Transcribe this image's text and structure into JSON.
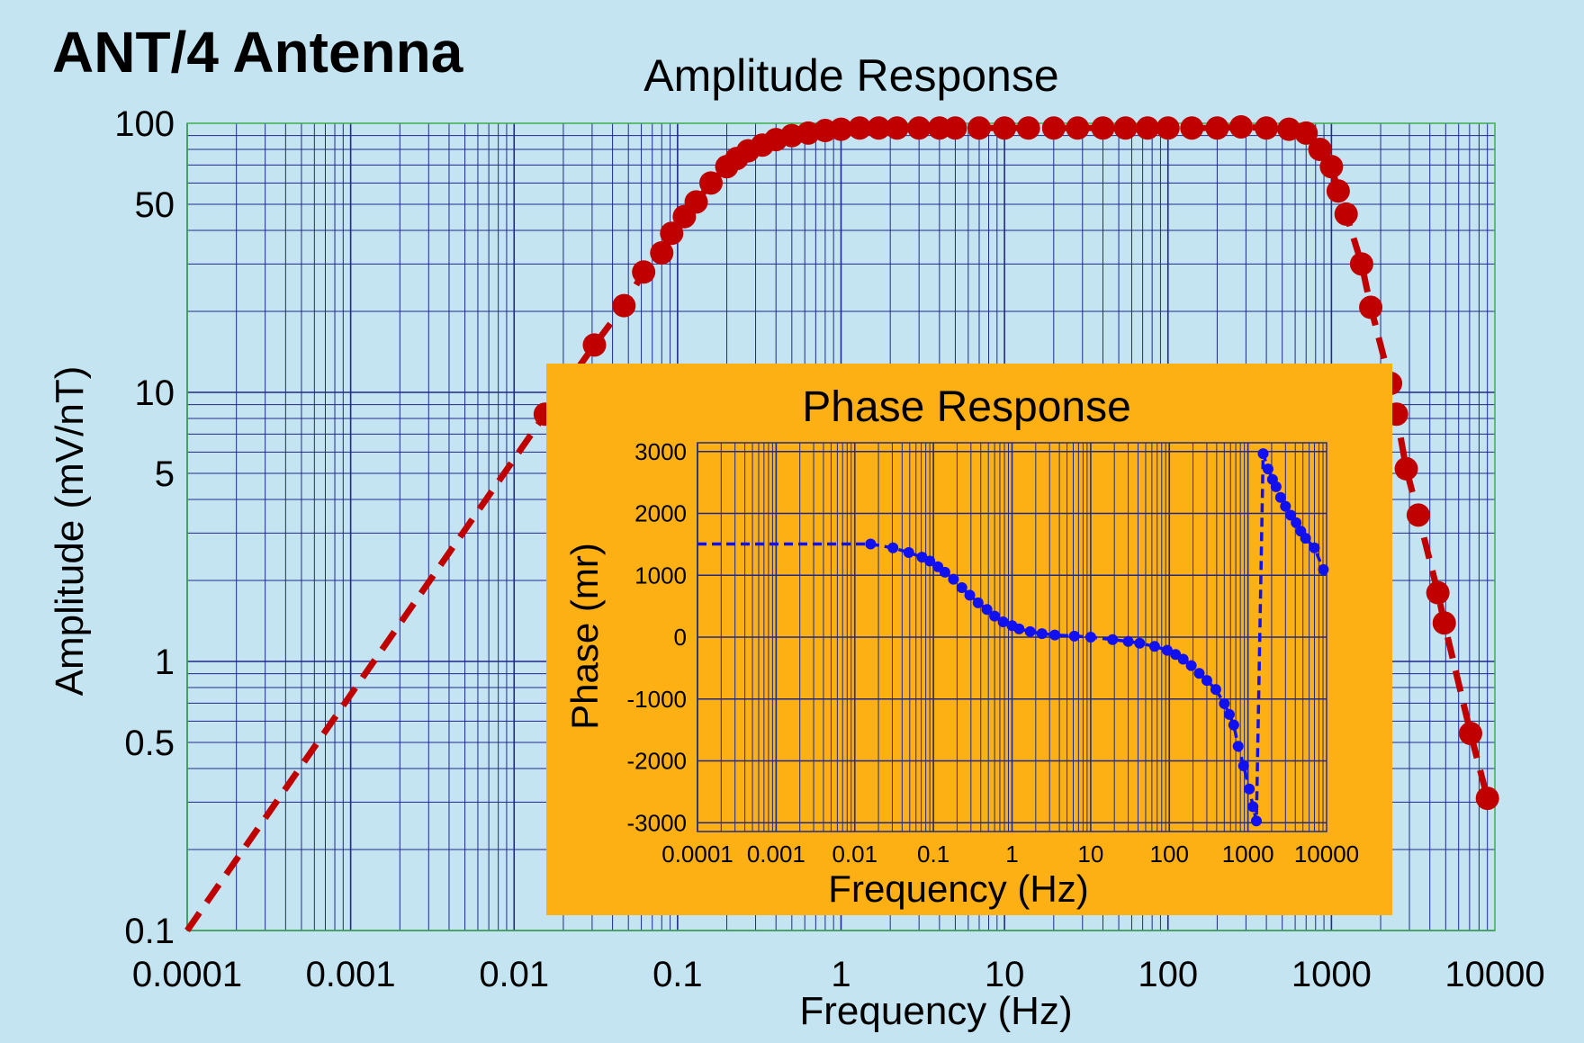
{
  "page_title": "ANT/4 Antenna",
  "colors": {
    "background": "#c4e4f1",
    "grid": "#1f2a8a",
    "plot_border": "#3fae4a",
    "amplitude_marker": "#c00000",
    "inset_background": "#fcb014",
    "phase_marker": "#1010f0"
  },
  "chart_data": [
    {
      "type": "scatter",
      "title": "Amplitude Response",
      "xlabel": "Frequency  (Hz)",
      "ylabel": "Amplitude  (mV/nT)",
      "xscale": "log",
      "yscale": "log",
      "xlim": [
        0.0001,
        10000
      ],
      "ylim": [
        0.1,
        100
      ],
      "grid": true,
      "x_ticks": [
        "0.0001",
        "0.001",
        "0.01",
        "0.1",
        "1",
        "10",
        "100",
        "1000",
        "10000"
      ],
      "x_tick_values": [
        0.0001,
        0.001,
        0.01,
        0.1,
        1,
        10,
        100,
        1000,
        10000
      ],
      "y_ticks": [
        "100",
        "50",
        "10",
        "5",
        "1",
        "0.5",
        "0.1"
      ],
      "y_tick_values": [
        100,
        50,
        10,
        5,
        1,
        0.5,
        0.1
      ],
      "line_style": "dashed",
      "line_start": [
        0.0001,
        0.1
      ],
      "points": [
        [
          0.0155,
          8.3
        ],
        [
          0.031,
          15
        ],
        [
          0.047,
          21
        ],
        [
          0.062,
          28
        ],
        [
          0.08,
          33
        ],
        [
          0.092,
          39
        ],
        [
          0.11,
          45
        ],
        [
          0.13,
          51
        ],
        [
          0.16,
          60
        ],
        [
          0.2,
          69
        ],
        [
          0.23,
          74
        ],
        [
          0.27,
          79
        ],
        [
          0.33,
          83
        ],
        [
          0.4,
          87
        ],
        [
          0.5,
          90
        ],
        [
          0.63,
          92
        ],
        [
          0.8,
          94
        ],
        [
          1,
          95
        ],
        [
          1.3,
          96
        ],
        [
          1.7,
          96
        ],
        [
          2.2,
          96
        ],
        [
          3,
          96
        ],
        [
          4,
          96
        ],
        [
          5,
          96
        ],
        [
          7,
          96
        ],
        [
          10,
          96
        ],
        [
          14,
          96
        ],
        [
          20,
          96
        ],
        [
          28,
          96
        ],
        [
          40,
          96
        ],
        [
          55,
          96
        ],
        [
          75,
          96
        ],
        [
          100,
          96
        ],
        [
          140,
          96
        ],
        [
          200,
          96
        ],
        [
          280,
          97
        ],
        [
          400,
          96
        ],
        [
          550,
          95
        ],
        [
          700,
          92
        ],
        [
          850,
          80
        ],
        [
          1000,
          69
        ],
        [
          1100,
          56
        ],
        [
          1230,
          46
        ],
        [
          1530,
          30
        ],
        [
          1740,
          20.7
        ],
        [
          2300,
          10.8
        ],
        [
          2500,
          8.3
        ],
        [
          2870,
          5.2
        ],
        [
          3400,
          3.5
        ],
        [
          4480,
          1.8
        ],
        [
          4900,
          1.39
        ],
        [
          7100,
          0.54
        ],
        [
          9000,
          0.31
        ]
      ]
    },
    {
      "type": "scatter",
      "title": "Phase Response",
      "xlabel": "Frequency  (Hz)",
      "ylabel": "Phase  (mr)",
      "xscale": "log",
      "xlim": [
        0.0001,
        10000
      ],
      "ylim": [
        -3142,
        3142
      ],
      "grid": true,
      "x_ticks": [
        "0.0001",
        "0.001",
        "0.01",
        "0.1",
        "1",
        "10",
        "100",
        "1000",
        "10000"
      ],
      "x_tick_values": [
        0.0001,
        0.001,
        0.01,
        0.1,
        1,
        10,
        100,
        1000,
        10000
      ],
      "y_ticks": [
        "3000",
        "2000",
        "1000",
        "0",
        "-1000",
        "-2000",
        "-3000"
      ],
      "y_tick_values": [
        3000,
        2000,
        1000,
        0,
        -1000,
        -2000,
        -3000
      ],
      "line_style": "dashed",
      "line_start": [
        0.0001,
        1506
      ],
      "points": [
        [
          0.0159,
          1506
        ],
        [
          0.0306,
          1443
        ],
        [
          0.0486,
          1368
        ],
        [
          0.0716,
          1293
        ],
        [
          0.09,
          1230
        ],
        [
          0.114,
          1138
        ],
        [
          0.14,
          1050
        ],
        [
          0.18,
          937
        ],
        [
          0.23,
          800
        ],
        [
          0.29,
          678
        ],
        [
          0.37,
          555
        ],
        [
          0.48,
          448
        ],
        [
          0.6,
          340
        ],
        [
          0.77,
          247
        ],
        [
          1.0,
          185
        ],
        [
          1.23,
          132
        ],
        [
          1.7,
          90
        ],
        [
          2.4,
          57
        ],
        [
          3.5,
          35
        ],
        [
          6.2,
          17
        ],
        [
          10,
          0
        ],
        [
          19,
          -40
        ],
        [
          30,
          -70
        ],
        [
          42,
          -98
        ],
        [
          65,
          -150
        ],
        [
          94,
          -213
        ],
        [
          120,
          -280
        ],
        [
          150,
          -356
        ],
        [
          190,
          -460
        ],
        [
          240,
          -586
        ],
        [
          300,
          -700
        ],
        [
          390,
          -845
        ],
        [
          500,
          -1075
        ],
        [
          580,
          -1250
        ],
        [
          660,
          -1420
        ],
        [
          750,
          -1764
        ],
        [
          880,
          -2080
        ],
        [
          1040,
          -2454
        ],
        [
          1160,
          -2741
        ],
        [
          1280,
          -2971
        ],
        [
          1560,
          2966
        ],
        [
          1800,
          2718
        ],
        [
          2050,
          2550
        ],
        [
          2280,
          2431
        ],
        [
          2600,
          2259
        ],
        [
          3000,
          2115
        ],
        [
          3500,
          1971
        ],
        [
          4100,
          1850
        ],
        [
          4700,
          1713
        ],
        [
          5400,
          1598
        ],
        [
          7000,
          1443
        ],
        [
          9100,
          1092
        ]
      ]
    }
  ]
}
